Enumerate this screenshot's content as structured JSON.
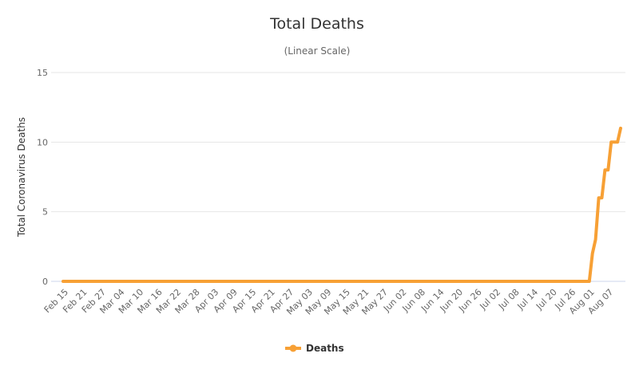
{
  "chart_data": {
    "type": "line",
    "title": "Total Deaths",
    "subtitle": "(Linear Scale)",
    "xlabel": "",
    "ylabel": "Total Coronavirus Deaths",
    "ylim": [
      0,
      15
    ],
    "yticks": [
      0,
      5,
      10,
      15
    ],
    "grid": true,
    "legend_placement": "bottom-center",
    "x_start": "2020-02-14",
    "x_step_days": 1,
    "x_tick_labels": [
      "Feb 15",
      "Feb 21",
      "Feb 27",
      "Mar 04",
      "Mar 10",
      "Mar 16",
      "Mar 22",
      "Mar 28",
      "Apr 03",
      "Apr 09",
      "Apr 15",
      "Apr 21",
      "Apr 27",
      "May 03",
      "May 09",
      "May 15",
      "May 21",
      "May 27",
      "Jun 02",
      "Jun 08",
      "Jun 14",
      "Jun 20",
      "Jun 26",
      "Jul 02",
      "Jul 08",
      "Jul 14",
      "Jul 20",
      "Jul 26",
      "Aug 01",
      "Aug 07"
    ],
    "x_tick_first_index": 1,
    "x_tick_interval": 6,
    "series": [
      {
        "name": "Deaths",
        "color": "#f7a035",
        "values": [
          0,
          0,
          0,
          0,
          0,
          0,
          0,
          0,
          0,
          0,
          0,
          0,
          0,
          0,
          0,
          0,
          0,
          0,
          0,
          0,
          0,
          0,
          0,
          0,
          0,
          0,
          0,
          0,
          0,
          0,
          0,
          0,
          0,
          0,
          0,
          0,
          0,
          0,
          0,
          0,
          0,
          0,
          0,
          0,
          0,
          0,
          0,
          0,
          0,
          0,
          0,
          0,
          0,
          0,
          0,
          0,
          0,
          0,
          0,
          0,
          0,
          0,
          0,
          0,
          0,
          0,
          0,
          0,
          0,
          0,
          0,
          0,
          0,
          0,
          0,
          0,
          0,
          0,
          0,
          0,
          0,
          0,
          0,
          0,
          0,
          0,
          0,
          0,
          0,
          0,
          0,
          0,
          0,
          0,
          0,
          0,
          0,
          0,
          0,
          0,
          0,
          0,
          0,
          0,
          0,
          0,
          0,
          0,
          0,
          0,
          0,
          0,
          0,
          0,
          0,
          0,
          0,
          0,
          0,
          0,
          0,
          0,
          0,
          0,
          0,
          0,
          0,
          0,
          0,
          0,
          0,
          0,
          0,
          0,
          0,
          0,
          0,
          0,
          0,
          0,
          0,
          0,
          0,
          0,
          0,
          0,
          0,
          0,
          0,
          0,
          0,
          0,
          0,
          0,
          0,
          0,
          0,
          0,
          0,
          0,
          0,
          0,
          0,
          0,
          0,
          0,
          0,
          0,
          0,
          2,
          3,
          6,
          6,
          8,
          8,
          10,
          10,
          10,
          11
        ]
      }
    ]
  }
}
